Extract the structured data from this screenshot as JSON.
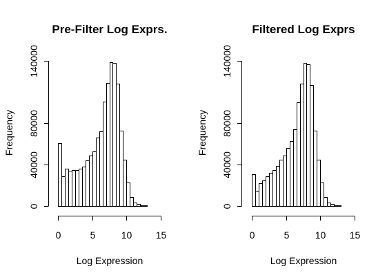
{
  "chart_data": [
    {
      "type": "bar",
      "title": "Pre-Filter Log Exprs.",
      "xlabel": "Log Expression",
      "ylabel": "Frequency",
      "xlim": [
        0,
        15
      ],
      "ylim": [
        0,
        140000
      ],
      "xticks": [
        "0",
        "5",
        "10",
        "15"
      ],
      "yticks": [
        "0",
        "40000",
        "80000",
        "140000"
      ],
      "bin_width": 0.5,
      "bin_start": 0,
      "values": [
        61000,
        28500,
        36000,
        34000,
        35000,
        35000,
        36000,
        38000,
        44000,
        49000,
        53000,
        66000,
        72000,
        101000,
        119000,
        139000,
        138000,
        118000,
        73000,
        45000,
        23000,
        9000,
        3500,
        2000,
        1000,
        500,
        200,
        100,
        50,
        0
      ]
    },
    {
      "type": "bar",
      "title": "Filtered Log Exprs",
      "xlabel": "Log Expression",
      "ylabel": "Frequency",
      "xlim": [
        0,
        15
      ],
      "ylim": [
        0,
        140000
      ],
      "xticks": [
        "0",
        "5",
        "10",
        "15"
      ],
      "yticks": [
        "0",
        "40000",
        "80000",
        "140000"
      ],
      "bin_width": 0.5,
      "bin_start": 0,
      "values": [
        31000,
        15000,
        22000,
        25000,
        29000,
        32000,
        35000,
        39000,
        45000,
        49000,
        56000,
        63000,
        74000,
        100000,
        118000,
        138000,
        137000,
        117000,
        73000,
        45000,
        23000,
        9000,
        3500,
        2000,
        1000,
        500,
        200,
        100,
        50,
        0
      ]
    }
  ]
}
